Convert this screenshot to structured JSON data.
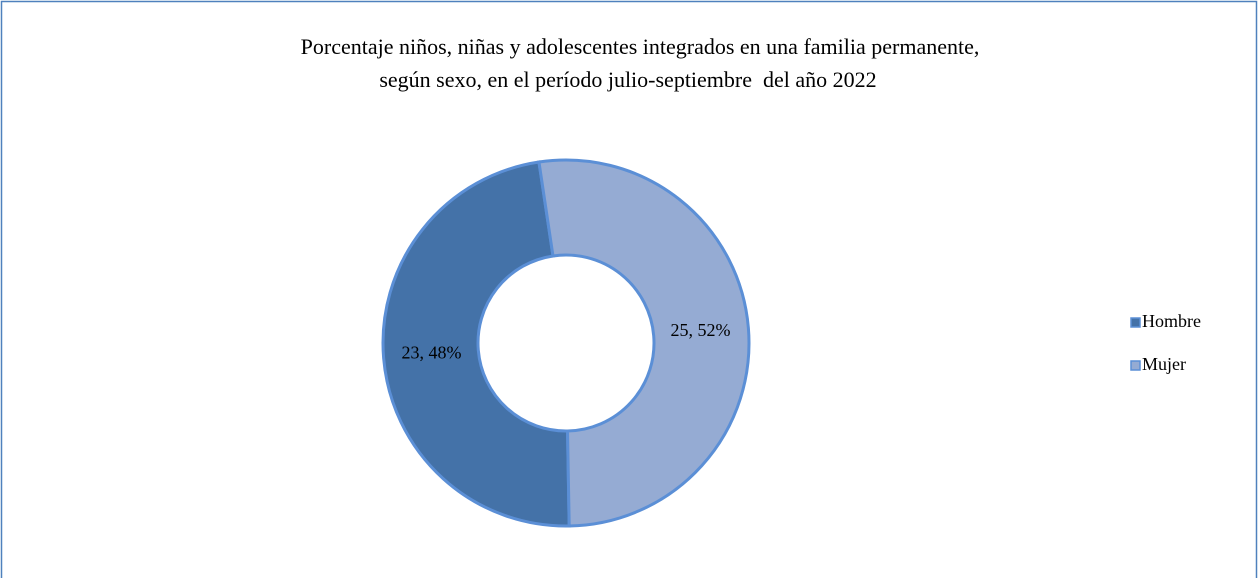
{
  "chart_data": {
    "type": "donut",
    "title": [
      "Porcentaje niños, niñas y adolescentes integrados en una familia permanente,",
      "según sexo, en el período julio-septiembre  del año 2022"
    ],
    "categories": [
      "Hombre",
      "Mujer"
    ],
    "values": [
      23,
      25
    ],
    "value_labels": [
      "23, 48%",
      "25, 52%"
    ],
    "colors": [
      "#4472a8",
      "#95abd3"
    ],
    "legend": "right"
  }
}
